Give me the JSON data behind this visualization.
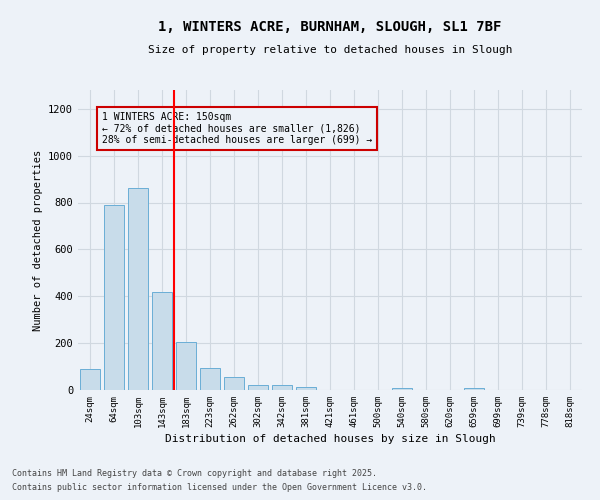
{
  "title1": "1, WINTERS ACRE, BURNHAM, SLOUGH, SL1 7BF",
  "title2": "Size of property relative to detached houses in Slough",
  "xlabel": "Distribution of detached houses by size in Slough",
  "ylabel": "Number of detached properties",
  "categories": [
    "24sqm",
    "64sqm",
    "103sqm",
    "143sqm",
    "183sqm",
    "223sqm",
    "262sqm",
    "302sqm",
    "342sqm",
    "381sqm",
    "421sqm",
    "461sqm",
    "500sqm",
    "540sqm",
    "580sqm",
    "620sqm",
    "659sqm",
    "699sqm",
    "739sqm",
    "778sqm",
    "818sqm"
  ],
  "values": [
    90,
    790,
    860,
    420,
    205,
    95,
    55,
    20,
    20,
    12,
    0,
    0,
    0,
    7,
    0,
    0,
    10,
    0,
    0,
    0,
    0
  ],
  "bar_color": "#c8dcea",
  "bar_edge_color": "#6aaed6",
  "grid_color": "#d0d8e0",
  "background_color": "#edf2f8",
  "red_line_index": 3,
  "annotation_text": "1 WINTERS ACRE: 150sqm\n← 72% of detached houses are smaller (1,826)\n28% of semi-detached houses are larger (699) →",
  "annotation_box_color": "#cc0000",
  "ylim": [
    0,
    1280
  ],
  "yticks": [
    0,
    200,
    400,
    600,
    800,
    1000,
    1200
  ],
  "footer1": "Contains HM Land Registry data © Crown copyright and database right 2025.",
  "footer2": "Contains public sector information licensed under the Open Government Licence v3.0."
}
